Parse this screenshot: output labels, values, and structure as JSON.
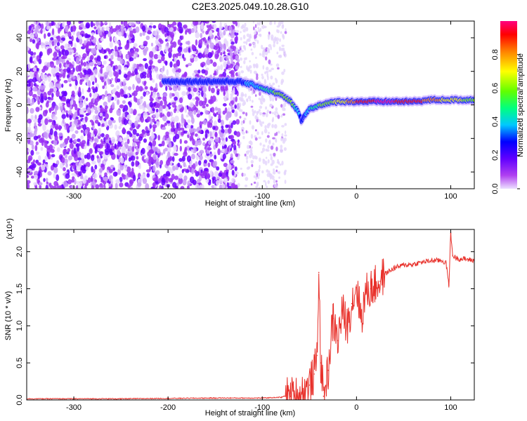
{
  "title": "C2E3.2025.049.10.28.G10",
  "chart_data": [
    {
      "type": "heatmap",
      "xlabel": "Height of straight line (km)",
      "ylabel": "Frequency (Hz)",
      "xlim": [
        -350,
        125
      ],
      "ylim": [
        -50,
        50
      ],
      "xticks": [
        -300,
        -200,
        -100,
        0,
        100
      ],
      "yticks": [
        -40,
        -20,
        0,
        20,
        40
      ],
      "colorbar": {
        "label": "Normalized spectral amplitude",
        "range": [
          0,
          1
        ],
        "ticks": [
          "0.0",
          "0.2",
          "0.4",
          "0.6",
          "0.8"
        ],
        "colors": [
          "#e6d9ff",
          "#a020f0",
          "#5a00ff",
          "#0000ff",
          "#00c8ff",
          "#00ff80",
          "#80ff00",
          "#ffff00",
          "#ff8000",
          "#ff0000",
          "#ff0080"
        ]
      },
      "noise_region": {
        "x": [
          -350,
          -125
        ],
        "y": [
          -50,
          50
        ]
      },
      "sparse_region": {
        "x": [
          -125,
          -75
        ],
        "y": [
          -50,
          50
        ]
      },
      "ridge": {
        "x": [
          -205,
          -180,
          -150,
          -125,
          -110,
          -95,
          -80,
          -70,
          -62,
          -58,
          -55,
          -50,
          -45,
          -40,
          -30,
          -20,
          -10,
          0,
          20,
          40,
          60,
          80,
          100,
          125
        ],
        "y": [
          14,
          14,
          14,
          14,
          12,
          9,
          6,
          2,
          -4,
          -10,
          -6,
          -2,
          -2,
          0,
          1,
          2,
          2,
          2,
          2,
          2,
          2,
          3,
          3,
          3
        ],
        "amplitude": [
          0.25,
          0.3,
          0.3,
          0.3,
          0.4,
          0.5,
          0.6,
          0.65,
          0.4,
          0.3,
          0.35,
          0.45,
          0.5,
          0.55,
          0.6,
          0.7,
          0.75,
          0.85,
          0.95,
          0.95,
          0.9,
          0.8,
          0.7,
          0.6
        ]
      }
    },
    {
      "type": "line",
      "xlabel": "Height of straight line (km)",
      "ylabel": "SNR (10 * v/v)",
      "y_multiplier": "(x10⁴)",
      "xlim": [
        -350,
        125
      ],
      "ylim": [
        0,
        2.3
      ],
      "xticks": [
        -300,
        -200,
        -100,
        0,
        100
      ],
      "yticks": [
        "0.0",
        "0.5",
        "1.0",
        "1.5",
        "2.0"
      ],
      "series": [
        {
          "color": "#e8302a",
          "x": [
            -350,
            -300,
            -250,
            -200,
            -150,
            -100,
            -80,
            -75,
            -70,
            -60,
            -55,
            -50,
            -45,
            -42,
            -40,
            -38,
            -35,
            -30,
            -25,
            -20,
            -15,
            -10,
            -5,
            0,
            5,
            10,
            15,
            20,
            25,
            30,
            40,
            50,
            60,
            70,
            80,
            90,
            95,
            98,
            100,
            102,
            105,
            110,
            115,
            125
          ],
          "y": [
            0.01,
            0.01,
            0.01,
            0.015,
            0.02,
            0.02,
            0.03,
            0.05,
            0.05,
            0.07,
            0.12,
            0.2,
            0.35,
            0.6,
            1.72,
            0.5,
            0.05,
            0.4,
            1.1,
            0.8,
            1.2,
            1.0,
            1.3,
            1.55,
            1.1,
            1.45,
            1.5,
            1.55,
            1.6,
            1.7,
            1.78,
            1.82,
            1.83,
            1.86,
            1.88,
            1.88,
            1.85,
            1.55,
            2.25,
            1.95,
            1.92,
            1.9,
            1.9,
            1.88
          ]
        }
      ]
    }
  ]
}
